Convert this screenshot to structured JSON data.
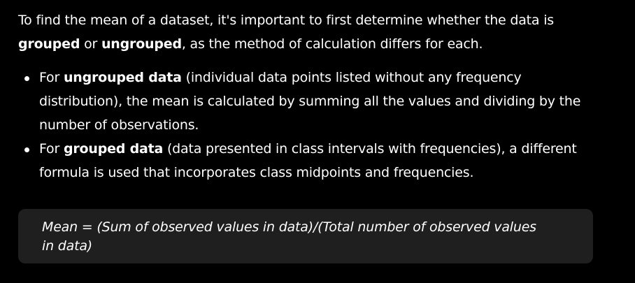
{
  "intro": {
    "part1": "To find the mean of a dataset, it's important to first determine whether the data is ",
    "grouped_bold": "grouped",
    "part2": " or ",
    "ungrouped_bold": "ungrouped",
    "part3": ", as the method of calculation differs for each."
  },
  "bullets": [
    {
      "prefix": "For ",
      "bold": "ungrouped data",
      "text": " (individual data points listed without any frequency distribution), the mean is calculated by summing all the values and dividing by the number of observations."
    },
    {
      "prefix": "For ",
      "bold": "grouped data",
      "text": " (data presented in class intervals with frequencies), a different formula is used that incorporates class midpoints and frequencies."
    }
  ],
  "formula": {
    "text": "Mean = (Sum of observed values in data)/(Total number of observed values in data)"
  },
  "colors": {
    "background": "#000000",
    "text": "#ffffff",
    "formula_box": "#1f1f1f"
  }
}
